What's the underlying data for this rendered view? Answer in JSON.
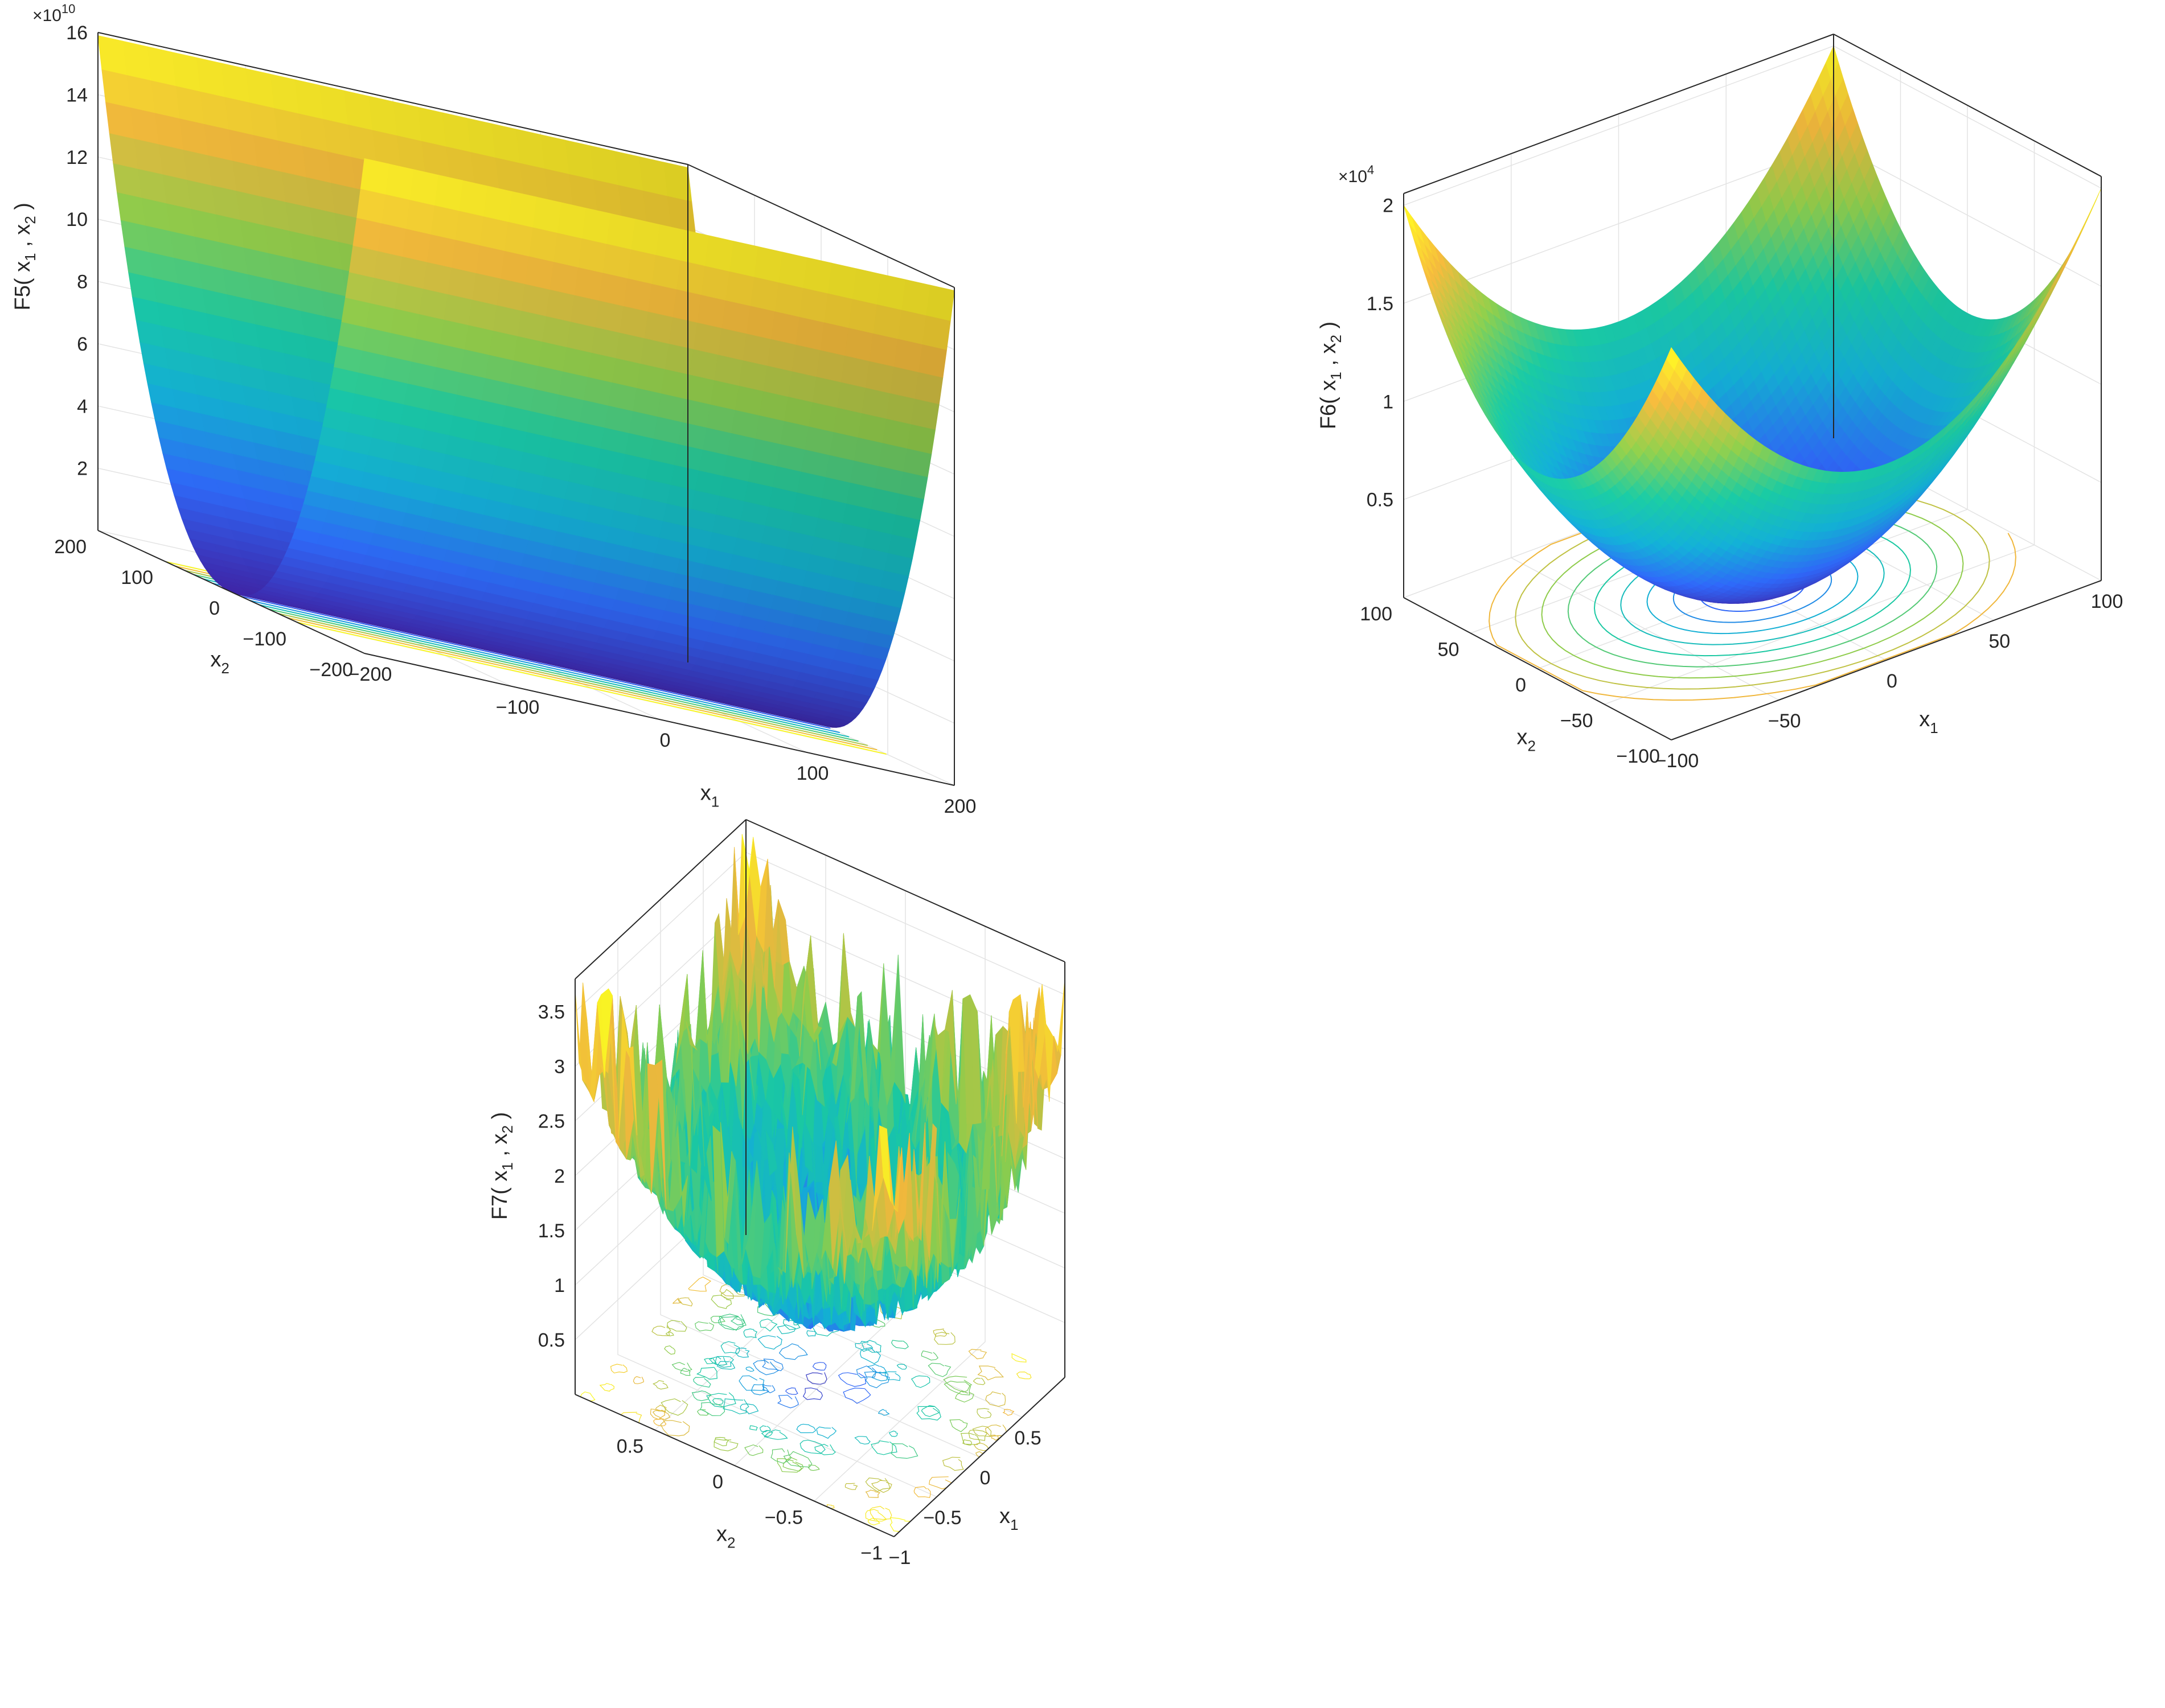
{
  "chart_data": [
    {
      "type": "surface",
      "function_label": {
        "base": "F5( x",
        "sub1": "1",
        "mid": " , x",
        "sub2": "2",
        "end": " )"
      },
      "xlabel": {
        "base": "x",
        "sub": "1"
      },
      "ylabel": {
        "base": "x",
        "sub": "2"
      },
      "exponent": {
        "base": "×10",
        "sup": "10"
      },
      "x_ticks": [
        "−200",
        "−100",
        "0",
        "100",
        "200"
      ],
      "y_ticks": [
        "−200",
        "−100",
        "0",
        "100",
        "200"
      ],
      "z_ticks": [
        "2",
        "4",
        "6",
        "8",
        "10",
        "12",
        "14",
        "16"
      ],
      "xlim": [
        -200,
        200
      ],
      "ylim": [
        -200,
        200
      ],
      "zlim": [
        0,
        16
      ],
      "z_scale": "1e10",
      "shape": "parabolic valley along x1, varying with x2",
      "contours": "parallel lines on base plane",
      "colormap": [
        "#3e26a8",
        "#2f67f7",
        "#13afd4",
        "#1ac8a2",
        "#8fcc4b",
        "#f0b73c",
        "#faf722"
      ],
      "grid": true
    },
    {
      "type": "surface",
      "function_label": {
        "base": "F6( x",
        "sub1": "1",
        "mid": " , x",
        "sub2": "2",
        "end": " )"
      },
      "xlabel": {
        "base": "x",
        "sub": "1"
      },
      "ylabel": {
        "base": "x",
        "sub": "2"
      },
      "exponent": {
        "base": "×10",
        "sup": "4"
      },
      "x_ticks": [
        "−100",
        "−50",
        "0",
        "50",
        "100"
      ],
      "y_ticks": [
        "−100",
        "−50",
        "0",
        "50",
        "100"
      ],
      "z_ticks": [
        "0.5",
        "1",
        "1.5",
        "2"
      ],
      "xlim": [
        -100,
        100
      ],
      "ylim": [
        -100,
        100
      ],
      "zlim": [
        0,
        2
      ],
      "z_scale": "1e4",
      "shape": "paraboloid bowl",
      "contours": "concentric ellipses on base plane",
      "colormap": [
        "#3e26a8",
        "#2f67f7",
        "#13afd4",
        "#1ac8a2",
        "#8fcc4b",
        "#f0b73c",
        "#faf722"
      ],
      "grid": true
    },
    {
      "type": "surface",
      "function_label": {
        "base": "F7( x",
        "sub1": "1",
        "mid": " , x",
        "sub2": "2",
        "end": " )"
      },
      "xlabel": {
        "base": "x",
        "sub": "1"
      },
      "ylabel": {
        "base": "x",
        "sub": "2"
      },
      "x_ticks": [
        "−1",
        "−0.5",
        "0",
        "0.5"
      ],
      "y_ticks": [
        "−1",
        "−0.5",
        "0",
        "0.5"
      ],
      "z_ticks": [
        "0.5",
        "1",
        "1.5",
        "2",
        "2.5",
        "3",
        "3.5"
      ],
      "xlim": [
        -1,
        1
      ],
      "ylim": [
        -1,
        1
      ],
      "zlim": [
        0,
        3.8
      ],
      "shape": "noisy bowl with random spikes",
      "contours": "irregular noisy contours on base plane",
      "colormap": [
        "#3e26a8",
        "#2f67f7",
        "#13afd4",
        "#1ac8a2",
        "#8fcc4b",
        "#f0b73c",
        "#faf722"
      ],
      "grid": true
    }
  ]
}
